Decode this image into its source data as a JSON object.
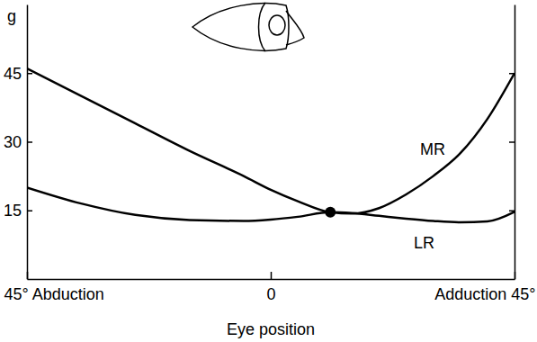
{
  "chart_data": {
    "type": "line",
    "x_label": "Eye position",
    "y_label": "g",
    "x": [
      -45,
      -35,
      -25,
      -15,
      -5,
      0,
      5,
      11,
      15,
      20,
      25,
      30,
      35,
      40,
      45
    ],
    "series": [
      {
        "name": "MR",
        "color": "#000000",
        "values": [
          46,
          40,
          34,
          28,
          22.5,
          19.5,
          17,
          14.6,
          14.3,
          15.5,
          18.5,
          22.5,
          27.5,
          35,
          45
        ]
      },
      {
        "name": "LR",
        "color": "#000000",
        "values": [
          20,
          16.5,
          14,
          12.9,
          12.7,
          13,
          13.6,
          14.6,
          14.4,
          13.8,
          13.2,
          12.7,
          12.4,
          12.6,
          14.7
        ]
      }
    ],
    "intersection": {
      "x": 11,
      "y": 14.6
    },
    "xlim": [
      -45,
      45
    ],
    "xticks": [
      {
        "value": -45,
        "label": "45° Abduction"
      },
      0,
      {
        "value": 45,
        "label": "Adduction 45°"
      }
    ],
    "ylim": [
      0,
      60
    ],
    "yticks": [
      15,
      30,
      45
    ],
    "grid": false
  }
}
